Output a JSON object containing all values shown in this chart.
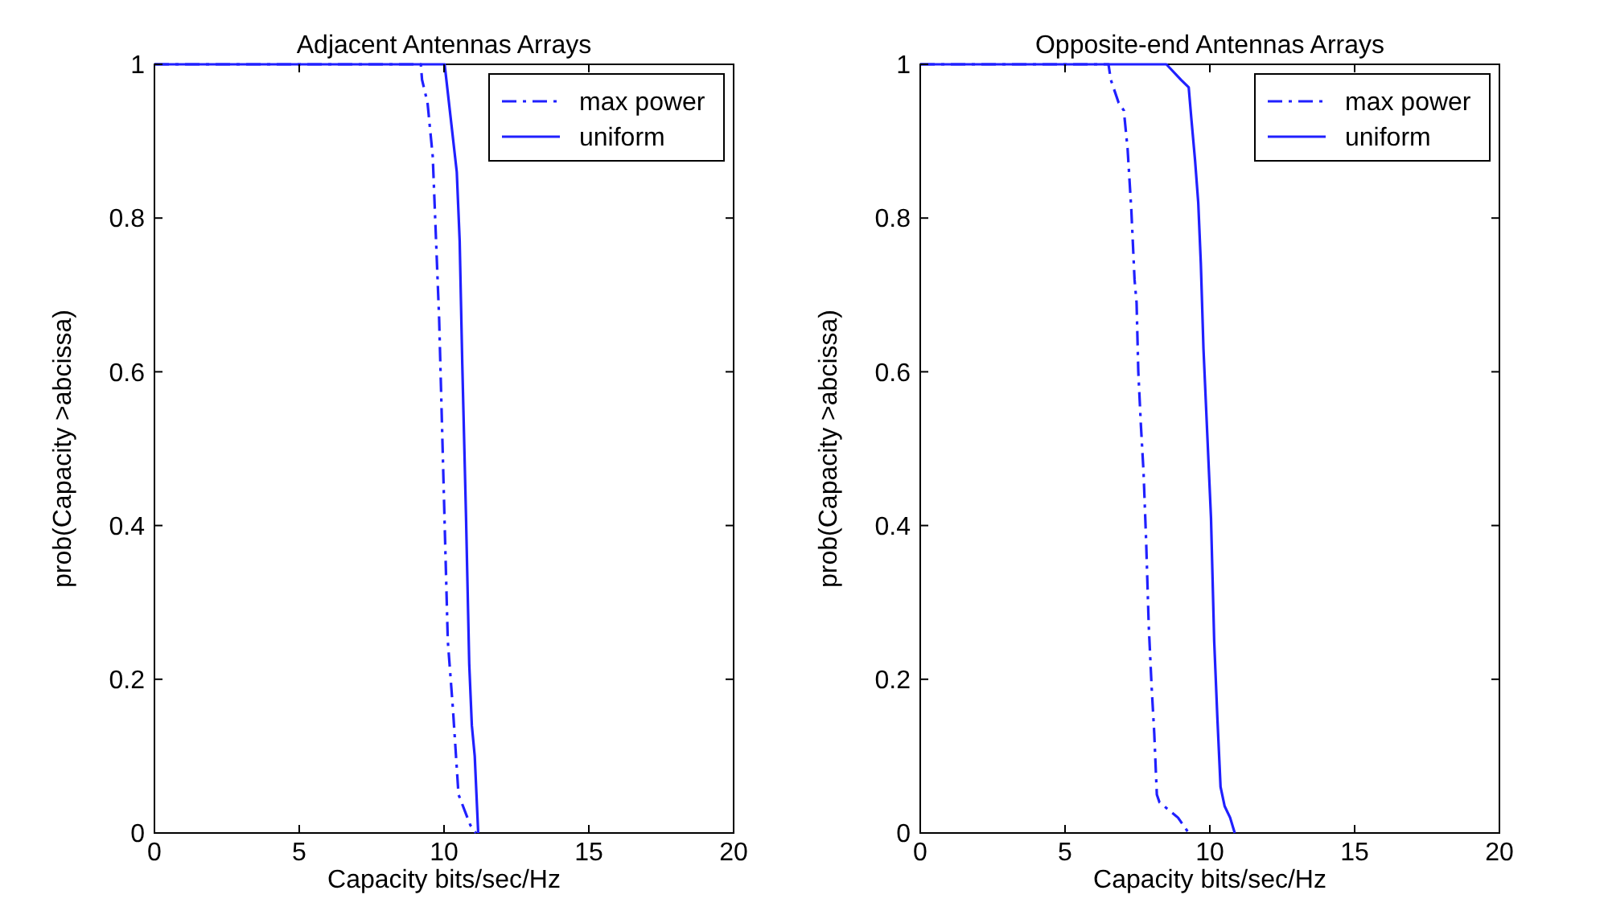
{
  "chart_data": [
    {
      "type": "line",
      "title": "Adjacent Antennas Arrays",
      "xlabel": "Capacity bits/sec/Hz",
      "ylabel": "prob(Capacity >abcissa)",
      "xlim": [
        0,
        20
      ],
      "xticks": [
        0,
        5,
        10,
        15,
        20
      ],
      "ylim": [
        0,
        1
      ],
      "yticks": [
        0,
        0.2,
        0.4,
        0.6,
        0.8,
        1
      ],
      "grid": false,
      "legend": "top right",
      "marker": "none",
      "series": [
        {
          "name": "max power",
          "color": "#2020ff",
          "line_style": "dashed",
          "x": [
            0,
            9.2,
            9.24,
            9.43,
            9.61,
            9.83,
            9.98,
            10.13,
            10.31,
            10.5,
            10.91,
            11.1
          ],
          "values": [
            1,
            1,
            0.98,
            0.95,
            0.88,
            0.67,
            0.46,
            0.25,
            0.16,
            0.05,
            0.01,
            0
          ]
        },
        {
          "name": "uniform",
          "color": "#2020ff",
          "line_style": "solid",
          "x": [
            0,
            10.02,
            10.26,
            10.44,
            10.54,
            10.63,
            10.76,
            10.87,
            10.96,
            11.06,
            11.18
          ],
          "values": [
            1,
            1,
            0.92,
            0.86,
            0.77,
            0.61,
            0.41,
            0.22,
            0.14,
            0.1,
            0
          ]
        }
      ]
    },
    {
      "type": "line",
      "title": "Opposite-end Antennas Arrays",
      "xlabel": "Capacity bits/sec/Hz",
      "ylabel": "prob(Capacity >abcissa)",
      "xlim": [
        0,
        20
      ],
      "xticks": [
        0,
        5,
        10,
        15,
        20
      ],
      "ylim": [
        0,
        1
      ],
      "yticks": [
        0,
        0.2,
        0.4,
        0.6,
        0.8,
        1
      ],
      "grid": false,
      "legend": "top right",
      "marker": "none",
      "series": [
        {
          "name": "max power",
          "color": "#2020ff",
          "line_style": "dashed",
          "x": [
            0,
            6.5,
            6.58,
            6.85,
            7.03,
            7.16,
            7.29,
            7.4,
            7.47,
            7.53,
            7.62,
            7.71,
            7.8,
            7.89,
            7.99,
            8.08,
            8.17,
            8.26,
            8.9,
            9.27
          ],
          "values": [
            1,
            1,
            0.98,
            0.95,
            0.94,
            0.89,
            0.81,
            0.72,
            0.69,
            0.6,
            0.53,
            0.47,
            0.38,
            0.27,
            0.19,
            0.13,
            0.05,
            0.04,
            0.02,
            0
          ]
        },
        {
          "name": "uniform",
          "color": "#2020ff",
          "line_style": "solid",
          "x": [
            0,
            8.5,
            9,
            9.27,
            9.36,
            9.49,
            9.6,
            9.69,
            9.78,
            9.91,
            10.04,
            10.15,
            10.26,
            10.37,
            10.51,
            10.7,
            10.86
          ],
          "values": [
            1,
            1,
            0.98,
            0.97,
            0.93,
            0.875,
            0.82,
            0.74,
            0.63,
            0.52,
            0.41,
            0.25,
            0.15,
            0.06,
            0.035,
            0.02,
            0
          ]
        }
      ]
    }
  ]
}
